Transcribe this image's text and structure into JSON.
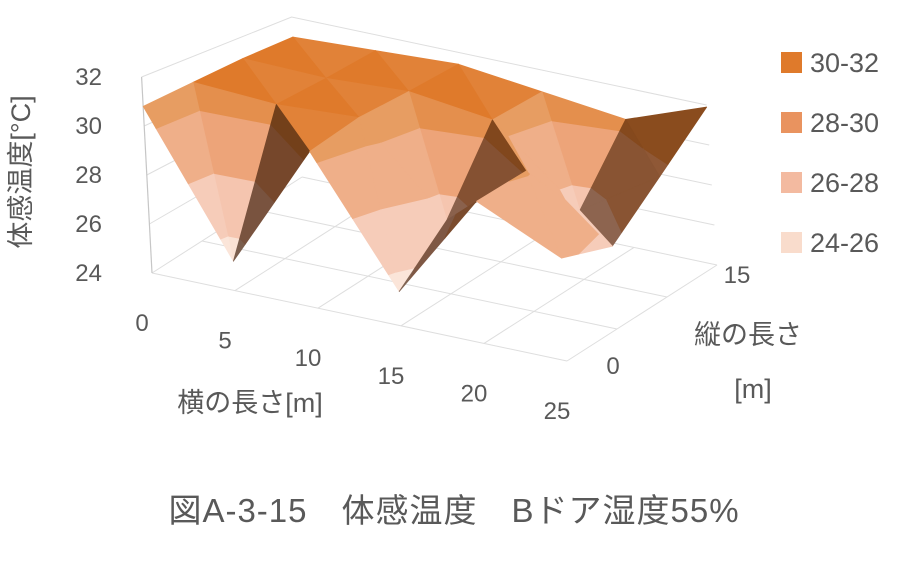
{
  "chart_data": {
    "type": "surface",
    "caption": "図A-3-15　体感温度　Bドア湿度55%",
    "x_axis": {
      "title": "横の長さ[m]",
      "ticks": [
        "0",
        "5",
        "10",
        "15",
        "20",
        "25"
      ]
    },
    "depth_axis": {
      "title_lines": [
        "縦の長さ",
        "[m]"
      ],
      "ticks": [
        "0",
        "15"
      ]
    },
    "value_axis": {
      "title": "体感温度[°C]",
      "ticks": [
        "24",
        "26",
        "28",
        "30",
        "32"
      ],
      "min": 24,
      "max": 32
    },
    "legend": [
      {
        "label": "30-32",
        "color": "#DF7A2B"
      },
      {
        "label": "28-30",
        "color": "#E9935F"
      },
      {
        "label": "26-28",
        "color": "#F3BAA0"
      },
      {
        "label": "24-26",
        "color": "#F9DCCC"
      }
    ],
    "colors": {
      "text": "#595959",
      "gridline": "#DEDEDE",
      "axis_line": "#C6C6C6",
      "shadow_brown": "#422513"
    },
    "surface_grid": {
      "depth_rows": [
        0,
        5,
        10,
        15
      ],
      "x_cols": [
        0,
        5,
        10,
        15,
        20,
        25
      ],
      "values": [
        [
          30.8,
          25.2,
          30.4,
          25.4,
          29.8,
          28.2
        ],
        [
          30.9,
          30.7,
          30.9,
          27.2,
          30.1,
          27.6
        ],
        [
          31.0,
          30.9,
          31.1,
          30.6,
          27.2,
          29.6
        ],
        [
          31.0,
          31.2,
          31.4,
          30.9,
          30.4,
          31.9
        ]
      ]
    }
  }
}
